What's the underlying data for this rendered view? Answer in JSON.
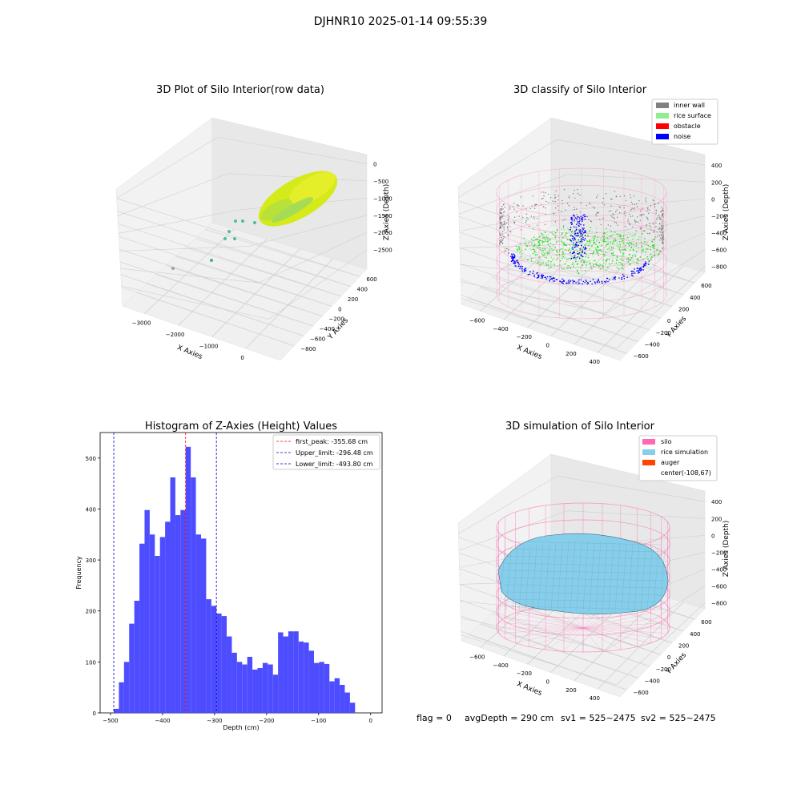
{
  "figure": {
    "suptitle": "DJHNR10 2025-01-14 09:55:39",
    "footer": {
      "flag": "flag = 0",
      "avg": "avgDepth = 290 cm",
      "sv1": "sv1 = 525~2475",
      "sv2": "sv2 = 525~2475"
    }
  },
  "colors": {
    "histogram_bar": "#4d4dff",
    "first_peak_line": "#ff0000",
    "limit_lines": "#0000cc",
    "inner_wall": "#808080",
    "rice_surface": "#90ee90",
    "obstacle": "#ff0000",
    "noise": "#0000ff",
    "silo": "#ff69b4",
    "rice_simulation": "#87ceeb",
    "auger": "#ff4500",
    "raw_points": "#d4ea1a"
  },
  "chart_data": [
    {
      "type": "scatter",
      "projection": "3d",
      "title": "3D Plot of Silo Interior(row data)",
      "xlabel": "X Axies",
      "ylabel": "Y Axies",
      "zlabel": "Z Axies (Depth)",
      "x_ticks": [
        "−3000",
        "−2000",
        "−1000",
        "0"
      ],
      "y_ticks": [
        "−800",
        "−600",
        "−400",
        "−200",
        "0",
        "200",
        "400",
        "600"
      ],
      "z_ticks": [
        "0",
        "−500",
        "−1000",
        "−1500",
        "−2000",
        "−2500"
      ],
      "grid": true
    },
    {
      "type": "scatter",
      "projection": "3d",
      "title": "3D classify of Silo Interior",
      "xlabel": "X Axies",
      "ylabel": "Y Axies",
      "zlabel": "Z Axies (Depth)",
      "x_ticks": [
        "−600",
        "−400",
        "−200",
        "0",
        "200",
        "400"
      ],
      "y_ticks": [
        "−600",
        "−400",
        "−200",
        "0",
        "200",
        "400",
        "600"
      ],
      "z_ticks": [
        "400",
        "200",
        "0",
        "−200",
        "−400",
        "−600",
        "−800"
      ],
      "legend": [
        "inner wall",
        "rice surface",
        "obstacle",
        "noise"
      ],
      "legend_placement": "top-right",
      "grid": true
    },
    {
      "type": "bar",
      "title": "Histogram of Z-Axies (Height) Values",
      "xlabel": "Depth (cm)",
      "ylabel": "Frequency",
      "xlim": [
        -520,
        22
      ],
      "ylim": [
        0,
        550
      ],
      "x_ticks": [
        "−500",
        "−400",
        "−300",
        "−200",
        "−100",
        "0"
      ],
      "y_ticks": [
        "0",
        "100",
        "200",
        "300",
        "400",
        "500"
      ],
      "bin_start": -493.8,
      "bin_width": 9.87,
      "values": [
        8,
        60,
        100,
        175,
        220,
        332,
        398,
        350,
        308,
        345,
        375,
        462,
        388,
        398,
        522,
        462,
        350,
        342,
        223,
        210,
        195,
        190,
        150,
        118,
        100,
        95,
        110,
        85,
        88,
        98,
        95,
        75,
        158,
        150,
        160,
        160,
        140,
        138,
        122,
        98,
        100,
        96,
        62,
        68,
        55,
        40,
        20
      ],
      "lines": [
        {
          "label": "first_peak: -355.68 cm",
          "x": -355.68
        },
        {
          "label": "Upper_limit: -296.48 cm",
          "x": -296.48
        },
        {
          "label": "Lower_limit: -493.80 cm",
          "x": -493.8
        }
      ],
      "legend_placement": "top-right"
    },
    {
      "type": "area",
      "projection": "3d",
      "title": "3D simulation of Silo Interior",
      "xlabel": "X Axies",
      "ylabel": "Y Axies",
      "zlabel": "Z Axies (Depth)",
      "x_ticks": [
        "−600",
        "−400",
        "−200",
        "0",
        "200",
        "400"
      ],
      "y_ticks": [
        "−600",
        "−400",
        "−200",
        "0",
        "200",
        "400",
        "600"
      ],
      "z_ticks": [
        "400",
        "200",
        "0",
        "−200",
        "−400",
        "−600",
        "−800"
      ],
      "legend": [
        "silo",
        "rice simulation",
        "auger",
        "center(-108,67)"
      ],
      "legend_placement": "top-right",
      "grid": true
    }
  ]
}
